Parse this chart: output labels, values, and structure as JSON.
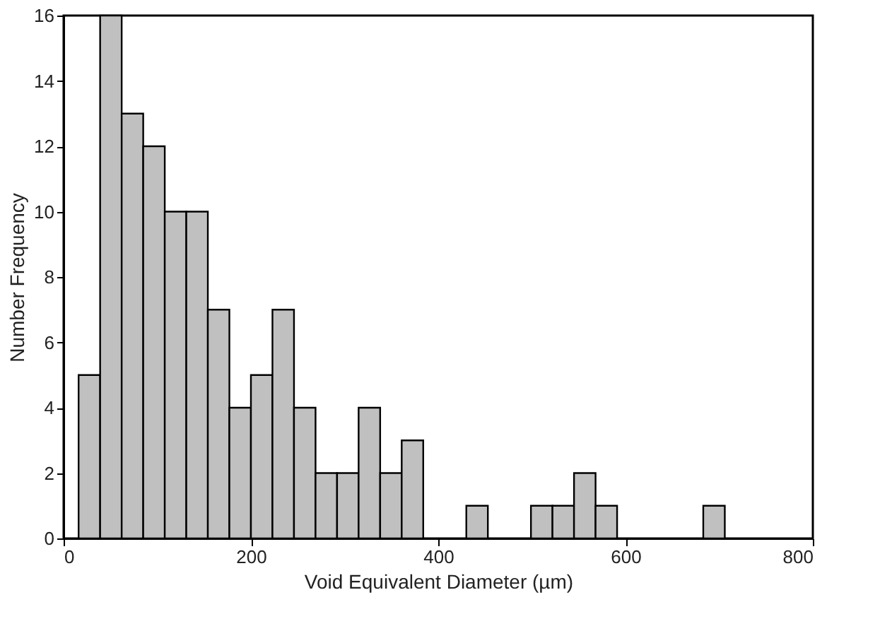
{
  "chart_data": {
    "type": "histogram",
    "xlabel": "Void Equivalent Diameter (µm)",
    "ylabel": "Number Frequency",
    "bins": [
      16,
      39,
      62,
      85,
      108,
      131,
      154,
      177,
      200,
      223,
      246,
      269,
      292,
      315,
      338,
      361,
      384,
      407,
      430,
      453,
      476,
      499,
      522,
      545,
      568,
      591,
      614,
      637,
      660,
      683,
      706
    ],
    "values": [
      5,
      16,
      13,
      12,
      10,
      10,
      7,
      4,
      5,
      7,
      4,
      2,
      2,
      4,
      2,
      3,
      0,
      0,
      1,
      0,
      0,
      1,
      1,
      2,
      1,
      0,
      0,
      0,
      0,
      1
    ],
    "color": "#c0c0c0",
    "xlim": [
      0,
      800
    ],
    "xticks": [
      0,
      200,
      400,
      600,
      800
    ],
    "ylim": [
      0,
      16
    ],
    "yticks": [
      0,
      2,
      4,
      6,
      8,
      10,
      12,
      14,
      16
    ],
    "grid": false
  }
}
